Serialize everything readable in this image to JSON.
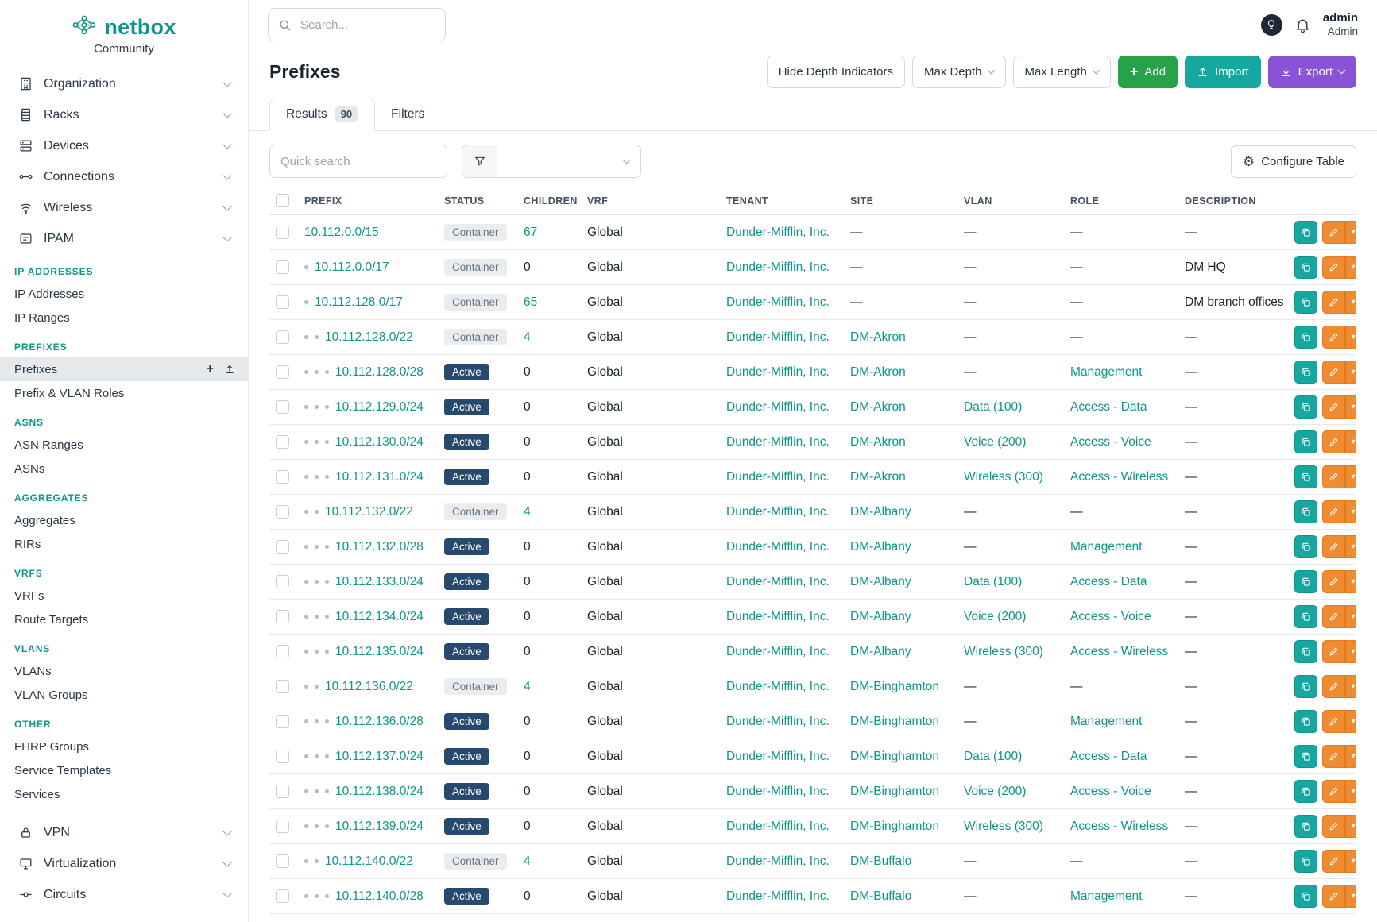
{
  "brand": {
    "name": "netbox",
    "subtitle": "Community"
  },
  "topbar": {
    "search_placeholder": "Search...",
    "user_name": "admin",
    "user_role": "Admin"
  },
  "sidebar": {
    "top_items": [
      "Organization",
      "Racks",
      "Devices",
      "Connections",
      "Wireless",
      "IPAM"
    ],
    "ipam_sections": [
      {
        "header": "IP ADDRESSES",
        "items": [
          {
            "label": "IP Addresses"
          },
          {
            "label": "IP Ranges"
          }
        ]
      },
      {
        "header": "PREFIXES",
        "items": [
          {
            "label": "Prefixes",
            "active": true
          },
          {
            "label": "Prefix & VLAN Roles"
          }
        ]
      },
      {
        "header": "ASNS",
        "items": [
          {
            "label": "ASN Ranges"
          },
          {
            "label": "ASNs"
          }
        ]
      },
      {
        "header": "AGGREGATES",
        "items": [
          {
            "label": "Aggregates"
          },
          {
            "label": "RIRs"
          }
        ]
      },
      {
        "header": "VRFS",
        "items": [
          {
            "label": "VRFs"
          },
          {
            "label": "Route Targets"
          }
        ]
      },
      {
        "header": "VLANS",
        "items": [
          {
            "label": "VLANs"
          },
          {
            "label": "VLAN Groups"
          }
        ]
      },
      {
        "header": "OTHER",
        "items": [
          {
            "label": "FHRP Groups"
          },
          {
            "label": "Service Templates"
          },
          {
            "label": "Services"
          }
        ]
      }
    ],
    "bottom_items": [
      "VPN",
      "Virtualization",
      "Circuits"
    ]
  },
  "page": {
    "title": "Prefixes",
    "toolbar": {
      "hide_depth": "Hide Depth Indicators",
      "max_depth": "Max Depth",
      "max_length": "Max Length",
      "add": "Add",
      "import": "Import",
      "export": "Export"
    },
    "tabs": {
      "results": "Results",
      "results_count": "90",
      "filters": "Filters"
    },
    "quick_search_placeholder": "Quick search",
    "configure_table": "Configure Table"
  },
  "table": {
    "columns": [
      "PREFIX",
      "STATUS",
      "CHILDREN",
      "VRF",
      "TENANT",
      "SITE",
      "VLAN",
      "ROLE",
      "DESCRIPTION"
    ],
    "rows": [
      {
        "depth": 0,
        "prefix": "10.112.0.0/15",
        "status": "Container",
        "children": "67",
        "vrf": "Global",
        "tenant": "Dunder-Mifflin, Inc.",
        "site": "—",
        "vlan": "—",
        "role": "—",
        "description": "—"
      },
      {
        "depth": 1,
        "prefix": "10.112.0.0/17",
        "status": "Container",
        "children": "0",
        "vrf": "Global",
        "tenant": "Dunder-Mifflin, Inc.",
        "site": "—",
        "vlan": "—",
        "role": "—",
        "description": "DM HQ"
      },
      {
        "depth": 1,
        "prefix": "10.112.128.0/17",
        "status": "Container",
        "children": "65",
        "vrf": "Global",
        "tenant": "Dunder-Mifflin, Inc.",
        "site": "—",
        "vlan": "—",
        "role": "—",
        "description": "DM branch offices"
      },
      {
        "depth": 2,
        "prefix": "10.112.128.0/22",
        "status": "Container",
        "children": "4",
        "vrf": "Global",
        "tenant": "Dunder-Mifflin, Inc.",
        "site": "DM-Akron",
        "vlan": "—",
        "role": "—",
        "description": "—"
      },
      {
        "depth": 3,
        "prefix": "10.112.128.0/28",
        "status": "Active",
        "children": "0",
        "vrf": "Global",
        "tenant": "Dunder-Mifflin, Inc.",
        "site": "DM-Akron",
        "vlan": "—",
        "role": "Management",
        "description": "—"
      },
      {
        "depth": 3,
        "prefix": "10.112.129.0/24",
        "status": "Active",
        "children": "0",
        "vrf": "Global",
        "tenant": "Dunder-Mifflin, Inc.",
        "site": "DM-Akron",
        "vlan": "Data (100)",
        "role": "Access - Data",
        "description": "—"
      },
      {
        "depth": 3,
        "prefix": "10.112.130.0/24",
        "status": "Active",
        "children": "0",
        "vrf": "Global",
        "tenant": "Dunder-Mifflin, Inc.",
        "site": "DM-Akron",
        "vlan": "Voice (200)",
        "role": "Access - Voice",
        "description": "—"
      },
      {
        "depth": 3,
        "prefix": "10.112.131.0/24",
        "status": "Active",
        "children": "0",
        "vrf": "Global",
        "tenant": "Dunder-Mifflin, Inc.",
        "site": "DM-Akron",
        "vlan": "Wireless (300)",
        "role": "Access - Wireless",
        "description": "—"
      },
      {
        "depth": 2,
        "prefix": "10.112.132.0/22",
        "status": "Container",
        "children": "4",
        "vrf": "Global",
        "tenant": "Dunder-Mifflin, Inc.",
        "site": "DM-Albany",
        "vlan": "—",
        "role": "—",
        "description": "—"
      },
      {
        "depth": 3,
        "prefix": "10.112.132.0/28",
        "status": "Active",
        "children": "0",
        "vrf": "Global",
        "tenant": "Dunder-Mifflin, Inc.",
        "site": "DM-Albany",
        "vlan": "—",
        "role": "Management",
        "description": "—"
      },
      {
        "depth": 3,
        "prefix": "10.112.133.0/24",
        "status": "Active",
        "children": "0",
        "vrf": "Global",
        "tenant": "Dunder-Mifflin, Inc.",
        "site": "DM-Albany",
        "vlan": "Data (100)",
        "role": "Access - Data",
        "description": "—"
      },
      {
        "depth": 3,
        "prefix": "10.112.134.0/24",
        "status": "Active",
        "children": "0",
        "vrf": "Global",
        "tenant": "Dunder-Mifflin, Inc.",
        "site": "DM-Albany",
        "vlan": "Voice (200)",
        "role": "Access - Voice",
        "description": "—"
      },
      {
        "depth": 3,
        "prefix": "10.112.135.0/24",
        "status": "Active",
        "children": "0",
        "vrf": "Global",
        "tenant": "Dunder-Mifflin, Inc.",
        "site": "DM-Albany",
        "vlan": "Wireless (300)",
        "role": "Access - Wireless",
        "description": "—"
      },
      {
        "depth": 2,
        "prefix": "10.112.136.0/22",
        "status": "Container",
        "children": "4",
        "vrf": "Global",
        "tenant": "Dunder-Mifflin, Inc.",
        "site": "DM-Binghamton",
        "vlan": "—",
        "role": "—",
        "description": "—"
      },
      {
        "depth": 3,
        "prefix": "10.112.136.0/28",
        "status": "Active",
        "children": "0",
        "vrf": "Global",
        "tenant": "Dunder-Mifflin, Inc.",
        "site": "DM-Binghamton",
        "vlan": "—",
        "role": "Management",
        "description": "—"
      },
      {
        "depth": 3,
        "prefix": "10.112.137.0/24",
        "status": "Active",
        "children": "0",
        "vrf": "Global",
        "tenant": "Dunder-Mifflin, Inc.",
        "site": "DM-Binghamton",
        "vlan": "Data (100)",
        "role": "Access - Data",
        "description": "—"
      },
      {
        "depth": 3,
        "prefix": "10.112.138.0/24",
        "status": "Active",
        "children": "0",
        "vrf": "Global",
        "tenant": "Dunder-Mifflin, Inc.",
        "site": "DM-Binghamton",
        "vlan": "Voice (200)",
        "role": "Access - Voice",
        "description": "—"
      },
      {
        "depth": 3,
        "prefix": "10.112.139.0/24",
        "status": "Active",
        "children": "0",
        "vrf": "Global",
        "tenant": "Dunder-Mifflin, Inc.",
        "site": "DM-Binghamton",
        "vlan": "Wireless (300)",
        "role": "Access - Wireless",
        "description": "—"
      },
      {
        "depth": 2,
        "prefix": "10.112.140.0/22",
        "status": "Container",
        "children": "4",
        "vrf": "Global",
        "tenant": "Dunder-Mifflin, Inc.",
        "site": "DM-Buffalo",
        "vlan": "—",
        "role": "—",
        "description": "—"
      },
      {
        "depth": 3,
        "prefix": "10.112.140.0/28",
        "status": "Active",
        "children": "0",
        "vrf": "Global",
        "tenant": "Dunder-Mifflin, Inc.",
        "site": "DM-Buffalo",
        "vlan": "—",
        "role": "Management",
        "description": "—"
      }
    ]
  },
  "colors": {
    "teal": "#0c968a",
    "green": "#26a248",
    "import_teal": "#16a8a0",
    "purple": "#8a52d6",
    "orange": "#ef8b30",
    "active_badge": "#27496d",
    "container_badge_bg": "#e9edf0"
  }
}
